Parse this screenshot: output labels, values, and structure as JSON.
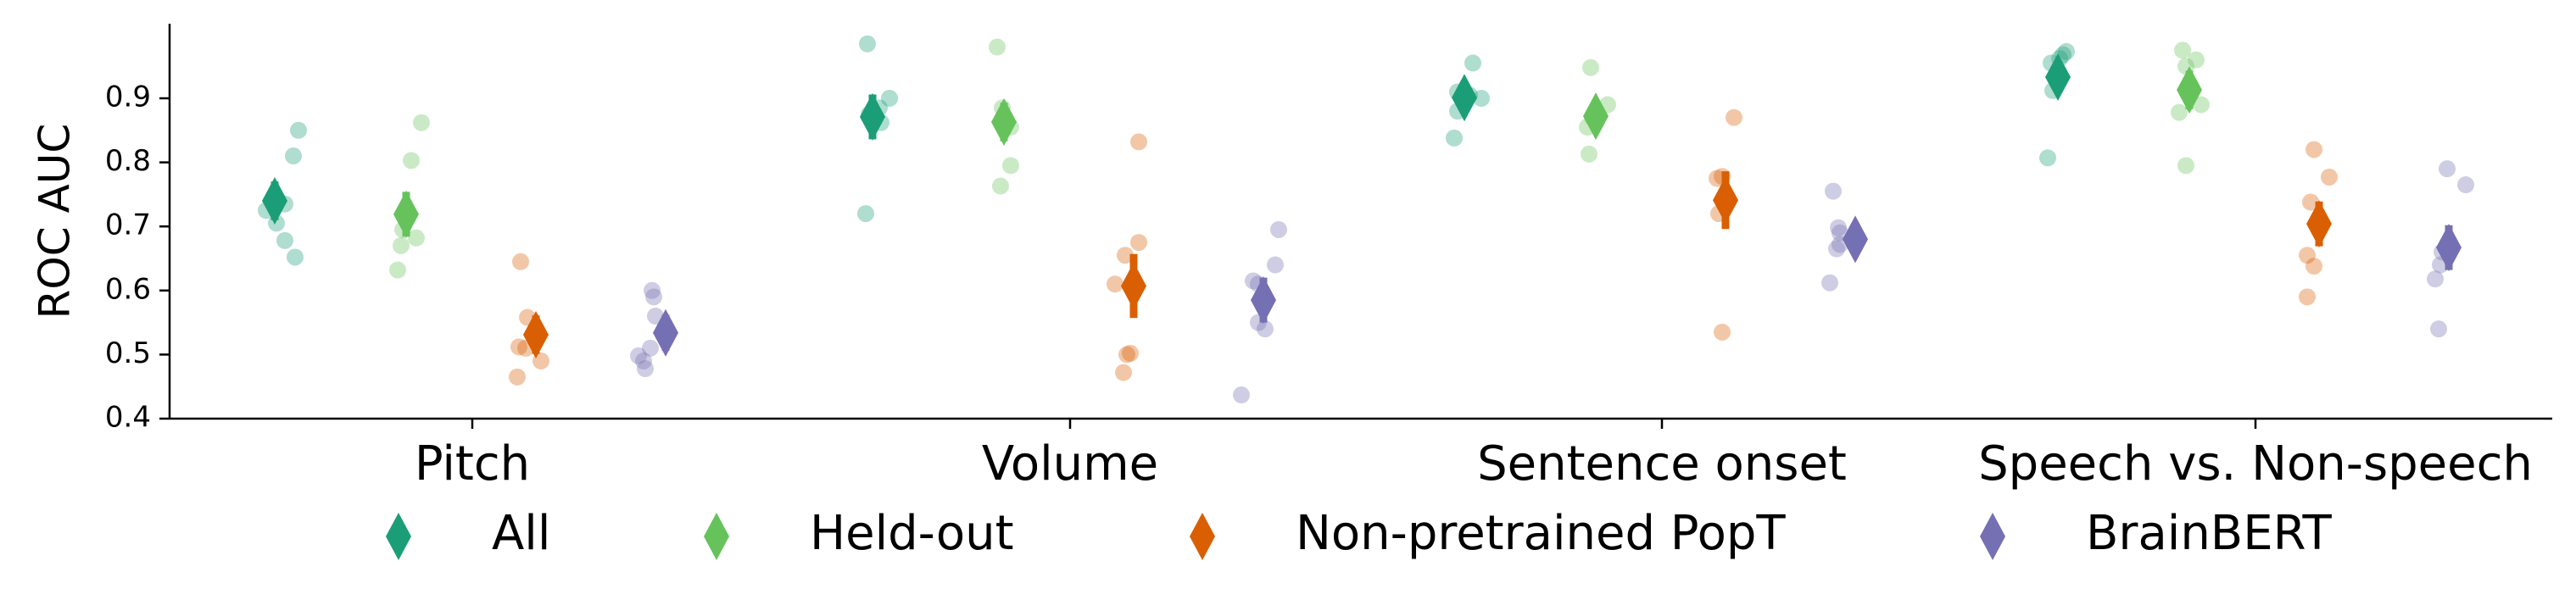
{
  "chart_data": {
    "type": "scatter",
    "ylabel": "ROC AUC",
    "xlabel": "",
    "ylim": [
      0.4,
      1.02
    ],
    "yticks": [
      0.4,
      0.5,
      0.6,
      0.7,
      0.8,
      0.9
    ],
    "categories": [
      "Pitch",
      "Volume",
      "Sentence onset",
      "Speech vs. Non-speech"
    ],
    "legend_placement": "bottom-center",
    "grid": false,
    "series": [
      {
        "name": "All",
        "color": "#1b9e77",
        "means": [
          0.74,
          0.871,
          0.901,
          0.933
        ],
        "errors": [
          0.03,
          0.035,
          0.018,
          0.022
        ],
        "points": [
          [
            0.85,
            0.81,
            0.735,
            0.725,
            0.705,
            0.678,
            0.652
          ],
          [
            0.985,
            0.9,
            0.885,
            0.875,
            0.862,
            0.72
          ],
          [
            0.955,
            0.91,
            0.905,
            0.9,
            0.88,
            0.838
          ],
          [
            0.973,
            0.968,
            0.962,
            0.955,
            0.912,
            0.807
          ]
        ]
      },
      {
        "name": "Held-out",
        "color": "#66c35c",
        "means": [
          0.719,
          0.863,
          0.872,
          0.913
        ],
        "errors": [
          0.035,
          0.03,
          0.025,
          0.03
        ],
        "points": [
          [
            0.862,
            0.803,
            0.695,
            0.682,
            0.67,
            0.632
          ],
          [
            0.98,
            0.885,
            0.855,
            0.795,
            0.763
          ],
          [
            0.948,
            0.89,
            0.87,
            0.855,
            0.813
          ],
          [
            0.975,
            0.96,
            0.95,
            0.89,
            0.878,
            0.795
          ]
        ]
      },
      {
        "name": "Non-pretrained PopT",
        "color": "#d95f02",
        "means": [
          0.531,
          0.607,
          0.741,
          0.704
        ],
        "errors": [
          0.03,
          0.05,
          0.045,
          0.035
        ],
        "points": [
          [
            0.645,
            0.558,
            0.512,
            0.51,
            0.49,
            0.465
          ],
          [
            0.832,
            0.675,
            0.655,
            0.61,
            0.502,
            0.5,
            0.472
          ],
          [
            0.87,
            0.778,
            0.775,
            0.72,
            0.535
          ],
          [
            0.82,
            0.777,
            0.738,
            0.655,
            0.638,
            0.59
          ]
        ]
      },
      {
        "name": "BrainBERT",
        "color": "#7570b3",
        "means": [
          0.534,
          0.585,
          0.68,
          0.667
        ],
        "errors": [
          0.028,
          0.035,
          0.025,
          0.035
        ],
        "points": [
          [
            0.6,
            0.59,
            0.56,
            0.51,
            0.498,
            0.49,
            0.478
          ],
          [
            0.695,
            0.64,
            0.615,
            0.61,
            0.55,
            0.54,
            0.437
          ],
          [
            0.755,
            0.698,
            0.69,
            0.672,
            0.665,
            0.612
          ],
          [
            0.79,
            0.765,
            0.66,
            0.64,
            0.618,
            0.54
          ]
        ]
      }
    ]
  }
}
